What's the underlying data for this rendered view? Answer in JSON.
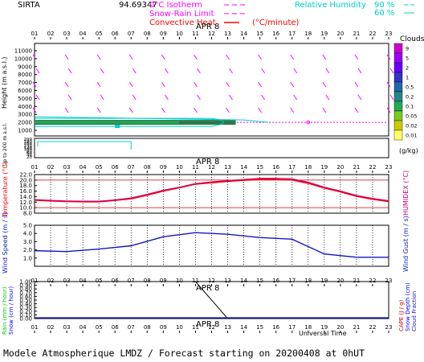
{
  "header": {
    "station": "SIRTA",
    "coords": "94.69347",
    "zero_isotherm_label": "0°C Isotherm",
    "snow_rain_label": "Snow-Rain Limit",
    "convective_label": "Convective Heat",
    "convective_unit": "(°C/minute)",
    "rh_label": "Relative Humidity",
    "rh_90": "90 %",
    "rh_60": "60 %",
    "date_label": "APR 8",
    "footer": "Modele Atmospherique LMDZ / Forecast starting on 20200408 at 0hUT",
    "universal_time": "Universal Time"
  },
  "colors": {
    "temperature": "#ff0000",
    "humidex": "#cc0066",
    "wind": "#1414c8",
    "rh90": "#00cccc",
    "rh60": "#00cccc",
    "isotherm": "#ff00ff",
    "precip": "#000000",
    "rain_label": "#00cc00",
    "snow_label": "#0000ff",
    "cape_label": "#cc0000"
  },
  "clouds_legend": {
    "title": "Clouds",
    "unit": "(g/kg)",
    "levels": [
      "9",
      "5",
      "2",
      "1",
      "0.5",
      "0.2",
      "0.1",
      "0.05",
      "0.02",
      "0.01"
    ],
    "colors": [
      "#cc00cc",
      "#9900ff",
      "#6600ff",
      "#3333cc",
      "#2266aa",
      "#228888",
      "#22aa55",
      "#77cc22",
      "#cccc00",
      "#ffff66"
    ]
  },
  "chart_data": [
    {
      "type": "heatmap",
      "title": "Height (m a.s.l.)",
      "ylabel": "Height (m a.s.l.)",
      "yticks": [
        "11000",
        "10000",
        "9000",
        "8000",
        "7000",
        "6000",
        "5000",
        "4000",
        "3000",
        "2000",
        "1000"
      ],
      "lower_ylabel": "Up to 200 m a.s.l.",
      "lower_yticks": [
        "200",
        "180",
        "160",
        "140",
        "120",
        "100",
        "80",
        "60",
        "40",
        "20"
      ],
      "xticks": [
        "01",
        "02",
        "03",
        "04",
        "05",
        "06",
        "07",
        "08",
        "09",
        "10",
        "11",
        "12",
        "13",
        "14",
        "15",
        "16",
        "17",
        "18",
        "19",
        "20",
        "21",
        "22",
        "23"
      ],
      "isotherm_height_m": 2000
    },
    {
      "type": "line",
      "ylabel": "Temperature (°C)",
      "right_label": "HUMIDEX (°C)",
      "yticks": [
        "22.0",
        "20.0",
        "18.0",
        "16.0",
        "14.0",
        "12.0",
        "10.0",
        "8.0"
      ],
      "ylim": [
        8,
        22
      ],
      "x": [
        1,
        2,
        3,
        4,
        5,
        6,
        7,
        8,
        9,
        10,
        11,
        12,
        13,
        14,
        15,
        16,
        17,
        18,
        19,
        20,
        21,
        22,
        23
      ],
      "series": [
        {
          "name": "Temperature",
          "values": [
            12.7,
            12.4,
            12.2,
            12.1,
            12.1,
            12.6,
            13.2,
            14.5,
            16.0,
            17.2,
            18.5,
            19.0,
            19.5,
            19.9,
            20.2,
            20.2,
            20.0,
            18.8,
            17.1,
            15.7,
            14.1,
            13.0,
            12.2
          ]
        },
        {
          "name": "Humidex",
          "values": [
            12.9,
            12.6,
            12.4,
            12.3,
            12.3,
            12.8,
            13.5,
            14.8,
            16.3,
            17.4,
            18.7,
            19.3,
            19.8,
            20.2,
            20.6,
            20.6,
            20.4,
            19.2,
            17.4,
            16.0,
            14.4,
            13.3,
            12.5
          ]
        }
      ]
    },
    {
      "type": "line",
      "ylabel": "Wind Speed (m / s)",
      "right_label": "Wind Gust (m / s)",
      "yticks": [
        "5.0",
        "4.0",
        "3.0",
        "2.0",
        "1.0"
      ],
      "ylim": [
        0,
        5
      ],
      "x": [
        1,
        3,
        5,
        7,
        9,
        11,
        13,
        15,
        17,
        19,
        21,
        23
      ],
      "series": [
        {
          "name": "Wind Speed",
          "values": [
            1.9,
            1.8,
            2.1,
            2.5,
            3.6,
            4.1,
            3.9,
            3.5,
            3.3,
            1.5,
            1.1,
            1.1
          ]
        }
      ]
    },
    {
      "type": "line",
      "ylabel": "Rain (mm / hour)",
      "ylabel2": "Snow (cm / hour)",
      "right_label": "CAPE (J / g)",
      "right_label2": "Snow Depth (cm)",
      "right_label3": "Cloud Fraction",
      "yticks": [
        "1.00",
        "0.90",
        "0.80",
        "0.70",
        "0.60",
        "0.50",
        "0.40",
        "0.30",
        "0.20",
        "0.10",
        "0.00"
      ],
      "ylim": [
        0,
        1
      ],
      "x": [
        1,
        11,
        13,
        23
      ],
      "series": [
        {
          "name": "Cloud Fraction",
          "values": [
            1.0,
            1.0,
            0.0,
            0.0
          ]
        }
      ]
    }
  ]
}
